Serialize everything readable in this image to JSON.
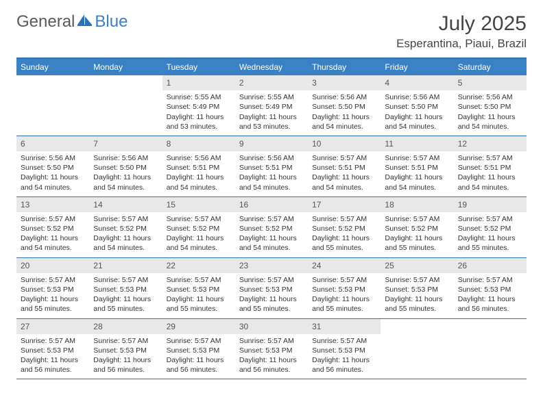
{
  "branding": {
    "logo_part1": "General",
    "logo_part2": "Blue",
    "logo_icon_color": "#2c72b8"
  },
  "header": {
    "month_title": "July 2025",
    "location": "Esperantina, Piaui, Brazil"
  },
  "colors": {
    "header_bar": "#3b82c4",
    "border": "#2c72b8",
    "daynum_bg": "#e8e8e8",
    "text": "#333333",
    "muted_text": "#5a5a5a"
  },
  "days_of_week": [
    "Sunday",
    "Monday",
    "Tuesday",
    "Wednesday",
    "Thursday",
    "Friday",
    "Saturday"
  ],
  "weeks": [
    [
      null,
      null,
      {
        "n": "1",
        "sunrise": "Sunrise: 5:55 AM",
        "sunset": "Sunset: 5:49 PM",
        "daylight": "Daylight: 11 hours and 53 minutes."
      },
      {
        "n": "2",
        "sunrise": "Sunrise: 5:55 AM",
        "sunset": "Sunset: 5:49 PM",
        "daylight": "Daylight: 11 hours and 53 minutes."
      },
      {
        "n": "3",
        "sunrise": "Sunrise: 5:56 AM",
        "sunset": "Sunset: 5:50 PM",
        "daylight": "Daylight: 11 hours and 54 minutes."
      },
      {
        "n": "4",
        "sunrise": "Sunrise: 5:56 AM",
        "sunset": "Sunset: 5:50 PM",
        "daylight": "Daylight: 11 hours and 54 minutes."
      },
      {
        "n": "5",
        "sunrise": "Sunrise: 5:56 AM",
        "sunset": "Sunset: 5:50 PM",
        "daylight": "Daylight: 11 hours and 54 minutes."
      }
    ],
    [
      {
        "n": "6",
        "sunrise": "Sunrise: 5:56 AM",
        "sunset": "Sunset: 5:50 PM",
        "daylight": "Daylight: 11 hours and 54 minutes."
      },
      {
        "n": "7",
        "sunrise": "Sunrise: 5:56 AM",
        "sunset": "Sunset: 5:50 PM",
        "daylight": "Daylight: 11 hours and 54 minutes."
      },
      {
        "n": "8",
        "sunrise": "Sunrise: 5:56 AM",
        "sunset": "Sunset: 5:51 PM",
        "daylight": "Daylight: 11 hours and 54 minutes."
      },
      {
        "n": "9",
        "sunrise": "Sunrise: 5:56 AM",
        "sunset": "Sunset: 5:51 PM",
        "daylight": "Daylight: 11 hours and 54 minutes."
      },
      {
        "n": "10",
        "sunrise": "Sunrise: 5:57 AM",
        "sunset": "Sunset: 5:51 PM",
        "daylight": "Daylight: 11 hours and 54 minutes."
      },
      {
        "n": "11",
        "sunrise": "Sunrise: 5:57 AM",
        "sunset": "Sunset: 5:51 PM",
        "daylight": "Daylight: 11 hours and 54 minutes."
      },
      {
        "n": "12",
        "sunrise": "Sunrise: 5:57 AM",
        "sunset": "Sunset: 5:51 PM",
        "daylight": "Daylight: 11 hours and 54 minutes."
      }
    ],
    [
      {
        "n": "13",
        "sunrise": "Sunrise: 5:57 AM",
        "sunset": "Sunset: 5:52 PM",
        "daylight": "Daylight: 11 hours and 54 minutes."
      },
      {
        "n": "14",
        "sunrise": "Sunrise: 5:57 AM",
        "sunset": "Sunset: 5:52 PM",
        "daylight": "Daylight: 11 hours and 54 minutes."
      },
      {
        "n": "15",
        "sunrise": "Sunrise: 5:57 AM",
        "sunset": "Sunset: 5:52 PM",
        "daylight": "Daylight: 11 hours and 54 minutes."
      },
      {
        "n": "16",
        "sunrise": "Sunrise: 5:57 AM",
        "sunset": "Sunset: 5:52 PM",
        "daylight": "Daylight: 11 hours and 54 minutes."
      },
      {
        "n": "17",
        "sunrise": "Sunrise: 5:57 AM",
        "sunset": "Sunset: 5:52 PM",
        "daylight": "Daylight: 11 hours and 55 minutes."
      },
      {
        "n": "18",
        "sunrise": "Sunrise: 5:57 AM",
        "sunset": "Sunset: 5:52 PM",
        "daylight": "Daylight: 11 hours and 55 minutes."
      },
      {
        "n": "19",
        "sunrise": "Sunrise: 5:57 AM",
        "sunset": "Sunset: 5:52 PM",
        "daylight": "Daylight: 11 hours and 55 minutes."
      }
    ],
    [
      {
        "n": "20",
        "sunrise": "Sunrise: 5:57 AM",
        "sunset": "Sunset: 5:53 PM",
        "daylight": "Daylight: 11 hours and 55 minutes."
      },
      {
        "n": "21",
        "sunrise": "Sunrise: 5:57 AM",
        "sunset": "Sunset: 5:53 PM",
        "daylight": "Daylight: 11 hours and 55 minutes."
      },
      {
        "n": "22",
        "sunrise": "Sunrise: 5:57 AM",
        "sunset": "Sunset: 5:53 PM",
        "daylight": "Daylight: 11 hours and 55 minutes."
      },
      {
        "n": "23",
        "sunrise": "Sunrise: 5:57 AM",
        "sunset": "Sunset: 5:53 PM",
        "daylight": "Daylight: 11 hours and 55 minutes."
      },
      {
        "n": "24",
        "sunrise": "Sunrise: 5:57 AM",
        "sunset": "Sunset: 5:53 PM",
        "daylight": "Daylight: 11 hours and 55 minutes."
      },
      {
        "n": "25",
        "sunrise": "Sunrise: 5:57 AM",
        "sunset": "Sunset: 5:53 PM",
        "daylight": "Daylight: 11 hours and 55 minutes."
      },
      {
        "n": "26",
        "sunrise": "Sunrise: 5:57 AM",
        "sunset": "Sunset: 5:53 PM",
        "daylight": "Daylight: 11 hours and 56 minutes."
      }
    ],
    [
      {
        "n": "27",
        "sunrise": "Sunrise: 5:57 AM",
        "sunset": "Sunset: 5:53 PM",
        "daylight": "Daylight: 11 hours and 56 minutes."
      },
      {
        "n": "28",
        "sunrise": "Sunrise: 5:57 AM",
        "sunset": "Sunset: 5:53 PM",
        "daylight": "Daylight: 11 hours and 56 minutes."
      },
      {
        "n": "29",
        "sunrise": "Sunrise: 5:57 AM",
        "sunset": "Sunset: 5:53 PM",
        "daylight": "Daylight: 11 hours and 56 minutes."
      },
      {
        "n": "30",
        "sunrise": "Sunrise: 5:57 AM",
        "sunset": "Sunset: 5:53 PM",
        "daylight": "Daylight: 11 hours and 56 minutes."
      },
      {
        "n": "31",
        "sunrise": "Sunrise: 5:57 AM",
        "sunset": "Sunset: 5:53 PM",
        "daylight": "Daylight: 11 hours and 56 minutes."
      },
      null,
      null
    ]
  ]
}
